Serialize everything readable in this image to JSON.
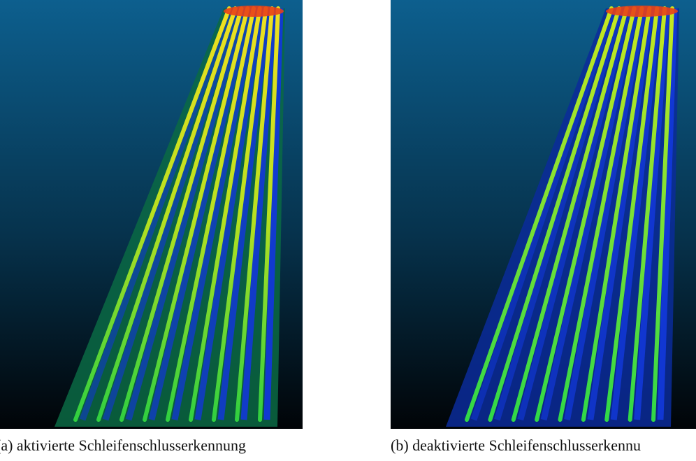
{
  "figures": [
    {
      "caption": "(a) aktivierte Schleifenschlusserkennung"
    },
    {
      "caption": "(b) deaktivierte Schleifenschlusserkennu"
    }
  ]
}
